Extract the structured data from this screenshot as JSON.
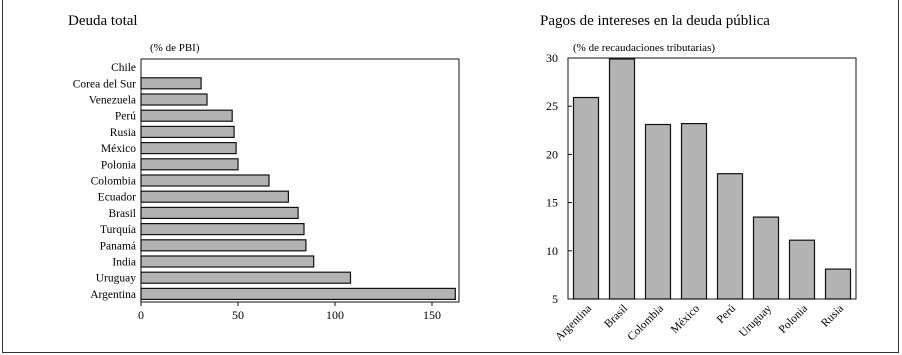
{
  "chart_data": [
    {
      "type": "bar",
      "orientation": "horizontal",
      "title": "Deuda total",
      "subtitle": "(% de PBI)",
      "categories": [
        "Chile",
        "Corea del Sur",
        "Venezuela",
        "Perú",
        "Rusia",
        "México",
        "Polonia",
        "Colombia",
        "Ecuador",
        "Brasil",
        "Turquía",
        "Panamá",
        "India",
        "Uruguay",
        "Argentina"
      ],
      "values": [
        0,
        31,
        34,
        47,
        48,
        49,
        50,
        66,
        76,
        81,
        84,
        85,
        89,
        108,
        162
      ],
      "xlim": [
        0,
        170
      ],
      "xticks": [
        0,
        50,
        100,
        150
      ],
      "grid": false
    },
    {
      "type": "bar",
      "orientation": "vertical",
      "title": "Pagos de intereses en la deuda pública",
      "subtitle": "(% de recaudaciones tributarias)",
      "categories": [
        "Argentina",
        "Brasil",
        "Colombia",
        "México",
        "Perú",
        "Uruguay",
        "Polonia",
        "Rusia"
      ],
      "values": [
        25.9,
        29.9,
        23.1,
        23.2,
        18.0,
        13.5,
        11.1,
        8.1
      ],
      "ylim": [
        5,
        30
      ],
      "yticks": [
        5,
        10,
        15,
        20,
        25,
        30
      ],
      "grid": false
    }
  ]
}
